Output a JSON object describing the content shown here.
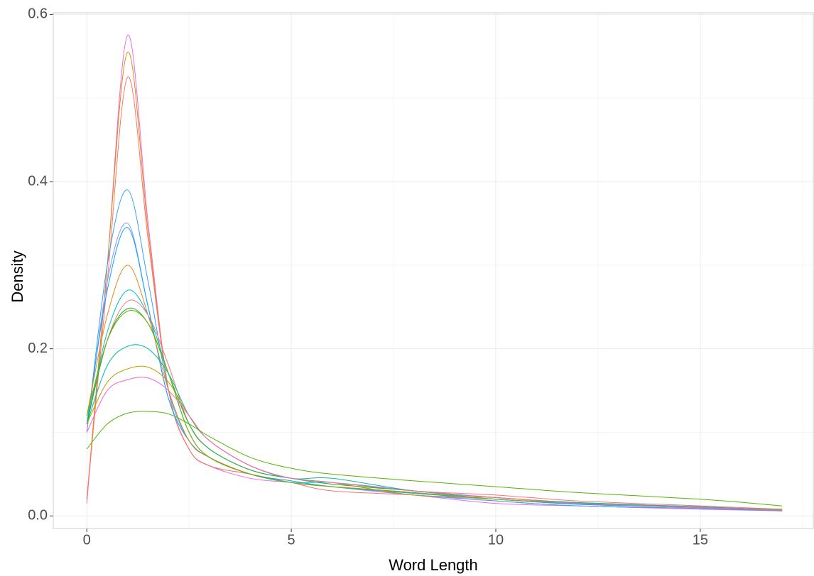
{
  "chart_data": {
    "type": "line",
    "x_label": "Word Length",
    "y_label": "Density",
    "x": [
      0,
      0.5,
      1,
      1.5,
      2,
      2.5,
      3,
      4,
      5,
      6,
      8,
      10,
      12,
      15,
      17
    ],
    "series": [
      {
        "color": "#ef67eb",
        "values": [
          0.015,
          0.3,
          0.575,
          0.35,
          0.15,
          0.08,
          0.06,
          0.045,
          0.04,
          0.035,
          0.025,
          0.015,
          0.012,
          0.008,
          0.006
        ]
      },
      {
        "color": "#de8c00",
        "values": [
          0.02,
          0.3,
          0.555,
          0.34,
          0.15,
          0.08,
          0.06,
          0.05,
          0.04,
          0.035,
          0.028,
          0.02,
          0.015,
          0.01,
          0.007
        ]
      },
      {
        "color": "#f8766d",
        "values": [
          0.02,
          0.28,
          0.525,
          0.33,
          0.15,
          0.08,
          0.06,
          0.05,
          0.04,
          0.03,
          0.025,
          0.018,
          0.012,
          0.009,
          0.006
        ]
      },
      {
        "color": "#35a2ff",
        "values": [
          0.1,
          0.3,
          0.39,
          0.28,
          0.15,
          0.09,
          0.07,
          0.05,
          0.04,
          0.035,
          0.025,
          0.018,
          0.012,
          0.009,
          0.006
        ]
      },
      {
        "color": "#9590ff",
        "values": [
          0.1,
          0.28,
          0.35,
          0.25,
          0.14,
          0.09,
          0.07,
          0.05,
          0.04,
          0.035,
          0.025,
          0.02,
          0.014,
          0.01,
          0.007
        ]
      },
      {
        "color": "#00a9ff",
        "values": [
          0.11,
          0.27,
          0.345,
          0.25,
          0.14,
          0.09,
          0.07,
          0.05,
          0.042,
          0.035,
          0.027,
          0.02,
          0.014,
          0.01,
          0.007
        ]
      },
      {
        "color": "#e7861b",
        "values": [
          0.12,
          0.24,
          0.3,
          0.24,
          0.15,
          0.09,
          0.07,
          0.05,
          0.04,
          0.035,
          0.028,
          0.02,
          0.015,
          0.01,
          0.008
        ]
      },
      {
        "color": "#00bfc4",
        "values": [
          0.11,
          0.22,
          0.27,
          0.24,
          0.17,
          0.1,
          0.07,
          0.05,
          0.04,
          0.04,
          0.03,
          0.02,
          0.015,
          0.01,
          0.007
        ]
      },
      {
        "color": "#fc717f",
        "values": [
          0.11,
          0.21,
          0.257,
          0.24,
          0.18,
          0.11,
          0.08,
          0.055,
          0.045,
          0.04,
          0.03,
          0.025,
          0.018,
          0.012,
          0.008
        ]
      },
      {
        "color": "#00ba38",
        "values": [
          0.11,
          0.21,
          0.248,
          0.23,
          0.17,
          0.11,
          0.08,
          0.055,
          0.045,
          0.038,
          0.03,
          0.022,
          0.016,
          0.011,
          0.007
        ]
      },
      {
        "color": "#7cae00",
        "values": [
          0.12,
          0.21,
          0.245,
          0.23,
          0.17,
          0.1,
          0.07,
          0.05,
          0.04,
          0.035,
          0.028,
          0.02,
          0.015,
          0.01,
          0.008
        ]
      },
      {
        "color": "#00bf96",
        "values": [
          0.11,
          0.18,
          0.203,
          0.2,
          0.17,
          0.12,
          0.09,
          0.06,
          0.045,
          0.045,
          0.03,
          0.022,
          0.016,
          0.011,
          0.007
        ]
      },
      {
        "color": "#c49a00",
        "values": [
          0.11,
          0.16,
          0.176,
          0.178,
          0.16,
          0.12,
          0.09,
          0.06,
          0.045,
          0.04,
          0.025,
          0.022,
          0.015,
          0.01,
          0.007
        ]
      },
      {
        "color": "#ff61c3",
        "values": [
          0.1,
          0.15,
          0.163,
          0.165,
          0.15,
          0.12,
          0.09,
          0.06,
          0.045,
          0.04,
          0.03,
          0.022,
          0.015,
          0.01,
          0.007
        ]
      },
      {
        "color": "#53b400",
        "values": [
          0.08,
          0.11,
          0.123,
          0.125,
          0.122,
          0.11,
          0.095,
          0.07,
          0.057,
          0.05,
          0.042,
          0.035,
          0.028,
          0.02,
          0.012
        ]
      }
    ],
    "xlim": [
      -0.82,
      17.78
    ],
    "ylim": [
      -0.015,
      0.602
    ],
    "xticks": [
      0,
      5,
      10,
      15
    ],
    "yticks": [
      {
        "value": 0,
        "label": "0.0"
      },
      0.2,
      0.4,
      0.6
    ],
    "xminor": [
      2.5,
      7.5,
      12.5,
      17.5
    ],
    "yminor": [
      0.1,
      0.3,
      0.5
    ],
    "grid": true
  }
}
